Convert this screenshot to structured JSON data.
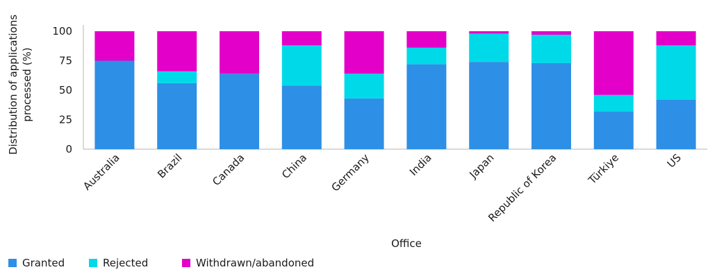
{
  "chart_data": {
    "type": "bar",
    "stacked": true,
    "title": "",
    "xlabel": "Office",
    "ylabel": "Distribution of applications processed (%)",
    "ylabel_lines": [
      "Distribution of applications",
      "processed (%)"
    ],
    "ylim": [
      0,
      100
    ],
    "yticks": [
      0,
      25,
      50,
      75,
      100
    ],
    "grid": false,
    "legend_position": "bottom-left",
    "categories": [
      "Australia",
      "Brazil",
      "Canada",
      "China",
      "Germany",
      "India",
      "Japan",
      "Republic of Korea",
      "Türkiye",
      "US"
    ],
    "series": [
      {
        "name": "Granted",
        "color": "#2d8fe6",
        "values": [
          75,
          56,
          64,
          54,
          43,
          72,
          74,
          73,
          32,
          42
        ]
      },
      {
        "name": "Rejected",
        "color": "#00d9e8",
        "values": [
          0,
          10,
          0,
          34,
          21,
          14,
          24,
          24,
          14,
          46
        ]
      },
      {
        "name": "Withdrawn/abandoned",
        "color": "#e300c8",
        "values": [
          25,
          34,
          36,
          12,
          36,
          14,
          2,
          3,
          54,
          12
        ]
      }
    ]
  }
}
